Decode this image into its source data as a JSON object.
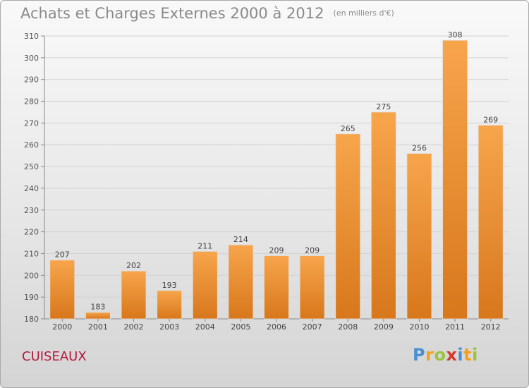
{
  "chart_data": {
    "type": "bar",
    "title": "Achats et Charges Externes 2000 à 2012",
    "subtitle": "(en milliers d'€)",
    "categories": [
      "2000",
      "2001",
      "2002",
      "2003",
      "2004",
      "2005",
      "2006",
      "2007",
      "2008",
      "2009",
      "2010",
      "2011",
      "2012"
    ],
    "values": [
      207,
      183,
      202,
      193,
      211,
      214,
      209,
      209,
      265,
      275,
      256,
      308,
      269
    ],
    "ylim": [
      180,
      310
    ],
    "yticks": [
      180,
      190,
      200,
      210,
      220,
      230,
      240,
      250,
      260,
      270,
      280,
      290,
      300,
      310
    ],
    "grid": true,
    "bar_color_top": "#f7a54b",
    "bar_color_bottom": "#d8771c"
  },
  "town": "CUISEAUX",
  "logo": {
    "letters": [
      "P",
      "r",
      "o",
      "x",
      "i",
      "t",
      "i"
    ],
    "colors": [
      "#4a8fd4",
      "#f2a01e",
      "#9ac43c",
      "#d8362b",
      "#4a8fd4",
      "#f2a01e",
      "#9ac43c"
    ]
  }
}
